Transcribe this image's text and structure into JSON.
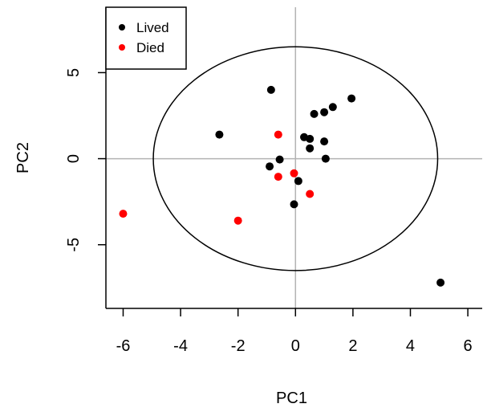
{
  "chart_data": {
    "type": "scatter",
    "title": "",
    "xlabel": "PC1",
    "ylabel": "PC2",
    "xlim": [
      -6.6,
      6.5
    ],
    "ylim": [
      -8.7,
      8.8
    ],
    "x_ticks": [
      -6,
      -4,
      -2,
      0,
      2,
      4,
      6
    ],
    "y_ticks": [
      -5,
      0,
      5
    ],
    "reference_lines": {
      "x": 0,
      "y": 0,
      "color": "#b3b3b3"
    },
    "ellipse": {
      "center": [
        0,
        0
      ],
      "rx": 4.95,
      "ry": 6.5,
      "color": "#000000"
    },
    "legend": {
      "position": "top-left"
    },
    "series": [
      {
        "name": "Lived",
        "color": "#000000",
        "points": [
          [
            -0.85,
            4.0
          ],
          [
            1.95,
            3.5
          ],
          [
            1.3,
            3.0
          ],
          [
            1.0,
            2.7
          ],
          [
            0.65,
            2.6
          ],
          [
            -2.65,
            1.4
          ],
          [
            0.3,
            1.25
          ],
          [
            0.5,
            1.15
          ],
          [
            1.0,
            1.0
          ],
          [
            0.5,
            0.6
          ],
          [
            -0.55,
            -0.05
          ],
          [
            1.05,
            0.0
          ],
          [
            -0.9,
            -0.45
          ],
          [
            0.1,
            -1.3
          ],
          [
            -0.05,
            -2.65
          ],
          [
            5.05,
            -7.2
          ]
        ]
      },
      {
        "name": "Died",
        "color": "#ff0000",
        "points": [
          [
            -0.6,
            1.4
          ],
          [
            -0.05,
            -0.85
          ],
          [
            -0.6,
            -1.05
          ],
          [
            0.5,
            -2.05
          ],
          [
            -2.0,
            -3.6
          ],
          [
            -6.0,
            -3.2
          ]
        ]
      }
    ]
  }
}
